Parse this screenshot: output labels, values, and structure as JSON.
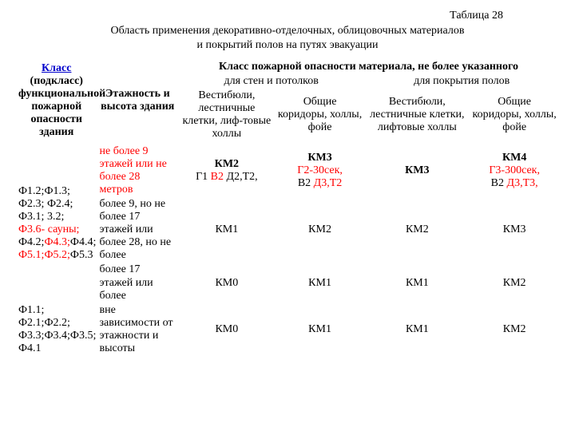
{
  "caption": {
    "number": "Таблица 28",
    "title_l1": "Область применения декоративно-отделочных, облицовочных материалов",
    "title_l2": "и покрытий полов на путях эвакуации"
  },
  "header": {
    "class_link": "Класс",
    "class_rest": "(подкласс) функциональной пожарной опасности здания",
    "stories": "Этажность и высота здания",
    "top": "Класс пожарной опасности материала, не более указанного",
    "walls": "для стен и потолков",
    "floors": "для покрытия полов",
    "vest1": "Вестибюли, лестничные клетки, лиф-товые холлы",
    "corr1": "Общие коридоры, холлы, фойе",
    "vest2": "Вестибюли, лестничные клетки, лифтовые холлы",
    "corr2": "Общие коридоры, холлы, фойе"
  },
  "rowsA": {
    "func": {
      "p1a": "Ф1.2;Ф1.3;",
      "p1b": "Ф2.3; Ф2.4;",
      "p2a": "Ф3.1; 3.2;",
      "p2b_red": "Ф3.6- сауны;",
      "p3a": "Ф4.2;",
      "p3b_red": "Ф4.3;",
      "p3c": "Ф4.4;",
      "p4_red": "Ф5.1;Ф5.2;",
      "p4b": "Ф5.3"
    },
    "r1": {
      "story_red": "не более 9 этажей или не более 28 метров",
      "c1_b": "КМ2",
      "c1_l2a": "Г1 ",
      "c1_l2b_red": "В2 ",
      "c1_l2c": "Д2,Т2,",
      "c2_b": "КМ3",
      "c2_l2_red": "Г2-30сек,",
      "c2_l3a": "В2 ",
      "c2_l3b_red": "Д3,Т2",
      "c3_b": "КМ3",
      "c4_b": "КМ4",
      "c4_l2_red": "Г3-300сек,",
      "c4_l3a": "В2 ",
      "c4_l3b_red": "Д3,Т3,"
    },
    "r2": {
      "story": "более 9, но не более 17 этажей или более 28, но не более",
      "c1": "КМ1",
      "c2": "КМ2",
      "c3": "КМ2",
      "c4": "КМ3"
    },
    "r3": {
      "story": "более 17 этажей или более",
      "c1": "КМ0",
      "c2": "КМ1",
      "c3": "КМ1",
      "c4": "КМ2"
    }
  },
  "rowB": {
    "func_l1": "Ф1.1;",
    "func_l2": " Ф2.1;Ф2.2;",
    "func_l3": "Ф3.3;Ф3.4;Ф3.5;",
    "func_l4": "Ф4.1",
    "story": "вне зависимости от этажности и высоты",
    "c1": "КМ0",
    "c2": "КМ1",
    "c3": "КМ1",
    "c4": "КМ2"
  }
}
